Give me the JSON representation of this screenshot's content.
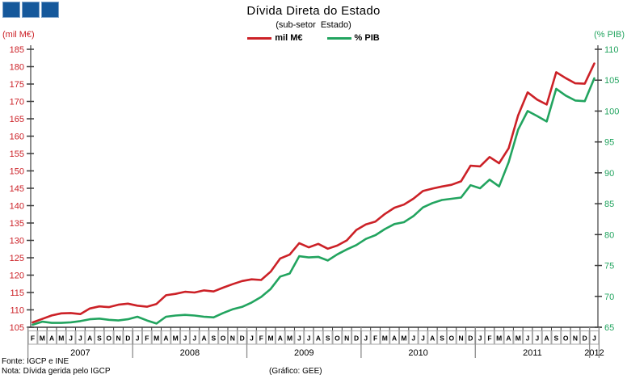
{
  "header": {
    "logo": {
      "squares": 3,
      "color": "#15589b"
    },
    "title": "Dívida Direta do Estado",
    "subtitle": "(sub-setor  Estado)",
    "legend": [
      {
        "label": "mil M€",
        "color": "#cc2127"
      },
      {
        "label": "% PIB",
        "color": "#22a45f"
      }
    ]
  },
  "footer": {
    "source": "Fonte: IGCP e INE",
    "note": "Nota: Dívida gerida pelo IGCP",
    "credit": "(Gráfico: GEE)"
  },
  "chart_data": {
    "type": "line",
    "title": "Dívida Direta do Estado",
    "subtitle": "(sub-setor Estado)",
    "grid": false,
    "legend_position": "top-center",
    "x_months": [
      "F",
      "M",
      "A",
      "M",
      "J",
      "J",
      "A",
      "S",
      "O",
      "N",
      "D",
      "J",
      "F",
      "M",
      "A",
      "M",
      "J",
      "J",
      "A",
      "S",
      "O",
      "N",
      "D",
      "J",
      "F",
      "M",
      "A",
      "M",
      "J",
      "J",
      "A",
      "S",
      "O",
      "N",
      "D",
      "J",
      "F",
      "M",
      "A",
      "M",
      "J",
      "J",
      "A",
      "S",
      "O",
      "N",
      "D",
      "J",
      "F",
      "M",
      "A",
      "M",
      "J",
      "J",
      "A",
      "S",
      "O",
      "N",
      "D",
      "J"
    ],
    "years": [
      {
        "label": "2007",
        "months": 11
      },
      {
        "label": "2008",
        "months": 12
      },
      {
        "label": "2009",
        "months": 12
      },
      {
        "label": "2010",
        "months": 12
      },
      {
        "label": "2011",
        "months": 12
      },
      {
        "label": "2012",
        "months": 1
      }
    ],
    "left_axis": {
      "title": "(mil M€)",
      "min": 105,
      "max": 185,
      "step": 5,
      "color": "#cc2127"
    },
    "right_axis": {
      "title": "(% PIB)",
      "min": 65,
      "max": 110,
      "step": 5,
      "color": "#22a45f"
    },
    "series": [
      {
        "name": "mil M€",
        "axis": "left",
        "color": "#cc2127",
        "values": [
          106.4,
          107.4,
          108.4,
          109.0,
          109.1,
          108.8,
          110.4,
          111.0,
          110.8,
          111.5,
          111.8,
          111.2,
          110.9,
          111.7,
          114.2,
          114.6,
          115.2,
          115.0,
          115.6,
          115.3,
          116.4,
          117.4,
          118.3,
          118.8,
          118.6,
          121.0,
          124.8,
          125.9,
          129.2,
          128.0,
          129.0,
          127.6,
          128.5,
          130.0,
          133.0,
          134.6,
          135.4,
          137.6,
          139.4,
          140.3,
          142.0,
          144.2,
          144.9,
          145.5,
          146.0,
          147.0,
          151.5,
          151.3,
          154.0,
          152.2,
          156.5,
          166.0,
          172.6,
          170.5,
          169.1,
          178.4,
          176.7,
          175.2,
          175.1,
          180.9
        ]
      },
      {
        "name": "% PIB",
        "axis": "right",
        "color": "#22a45f",
        "values": [
          65.4,
          65.9,
          65.7,
          65.7,
          65.8,
          66.0,
          66.3,
          66.4,
          66.2,
          66.1,
          66.3,
          66.7,
          66.1,
          65.6,
          66.7,
          66.9,
          67.0,
          66.9,
          66.7,
          66.6,
          67.3,
          67.9,
          68.3,
          69.0,
          69.9,
          71.2,
          73.2,
          73.7,
          76.5,
          76.3,
          76.4,
          75.8,
          76.8,
          77.6,
          78.3,
          79.3,
          79.9,
          80.9,
          81.7,
          82.0,
          83.0,
          84.4,
          85.1,
          85.6,
          85.8,
          86.0,
          88.0,
          87.5,
          88.9,
          87.8,
          91.7,
          97.0,
          100.0,
          99.2,
          98.3,
          103.6,
          102.5,
          101.7,
          101.6,
          105.3
        ]
      }
    ]
  }
}
